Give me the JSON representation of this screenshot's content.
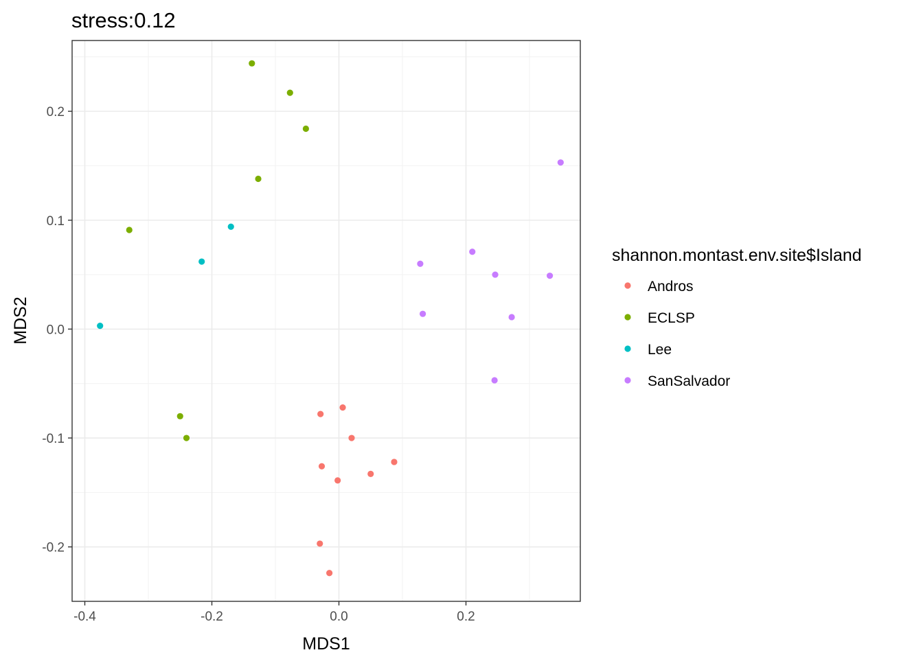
{
  "chart_data": {
    "type": "scatter",
    "title": "stress:0.12",
    "xlabel": "MDS1",
    "ylabel": "MDS2",
    "xlim": [
      -0.42,
      0.38
    ],
    "ylim": [
      -0.25,
      0.265
    ],
    "x_ticks": [
      -0.4,
      -0.2,
      0.0,
      0.2
    ],
    "x_tick_labels": [
      "-0.4",
      "-0.2",
      "0.0",
      "0.2"
    ],
    "y_ticks": [
      -0.2,
      -0.1,
      0.0,
      0.1,
      0.2
    ],
    "y_tick_labels": [
      "-0.2",
      "-0.1",
      "0.0",
      "0.1",
      "0.2"
    ],
    "grid": true,
    "legend": {
      "title": "shannon.montast.env.site$Island",
      "placement": "right"
    },
    "series": [
      {
        "name": "Andros",
        "color": "#F8766D",
        "points": [
          [
            -0.029,
            -0.078
          ],
          [
            0.006,
            -0.072
          ],
          [
            0.02,
            -0.1
          ],
          [
            -0.027,
            -0.126
          ],
          [
            0.087,
            -0.122
          ],
          [
            0.05,
            -0.133
          ],
          [
            -0.002,
            -0.139
          ],
          [
            -0.03,
            -0.197
          ],
          [
            -0.015,
            -0.224
          ]
        ]
      },
      {
        "name": "ECLSP",
        "color": "#7CAE00",
        "points": [
          [
            -0.137,
            0.244
          ],
          [
            -0.077,
            0.217
          ],
          [
            -0.052,
            0.184
          ],
          [
            -0.127,
            0.138
          ],
          [
            -0.33,
            0.091
          ],
          [
            -0.25,
            -0.08
          ],
          [
            -0.24,
            -0.1
          ]
        ]
      },
      {
        "name": "Lee",
        "color": "#00BFC4",
        "points": [
          [
            -0.17,
            0.094
          ],
          [
            -0.216,
            0.062
          ],
          [
            -0.376,
            0.003
          ]
        ]
      },
      {
        "name": "SanSalvador",
        "color": "#C77CFF",
        "points": [
          [
            0.349,
            0.153
          ],
          [
            0.21,
            0.071
          ],
          [
            0.128,
            0.06
          ],
          [
            0.246,
            0.05
          ],
          [
            0.332,
            0.049
          ],
          [
            0.132,
            0.014
          ],
          [
            0.272,
            0.011
          ],
          [
            0.245,
            -0.047
          ]
        ]
      }
    ]
  }
}
